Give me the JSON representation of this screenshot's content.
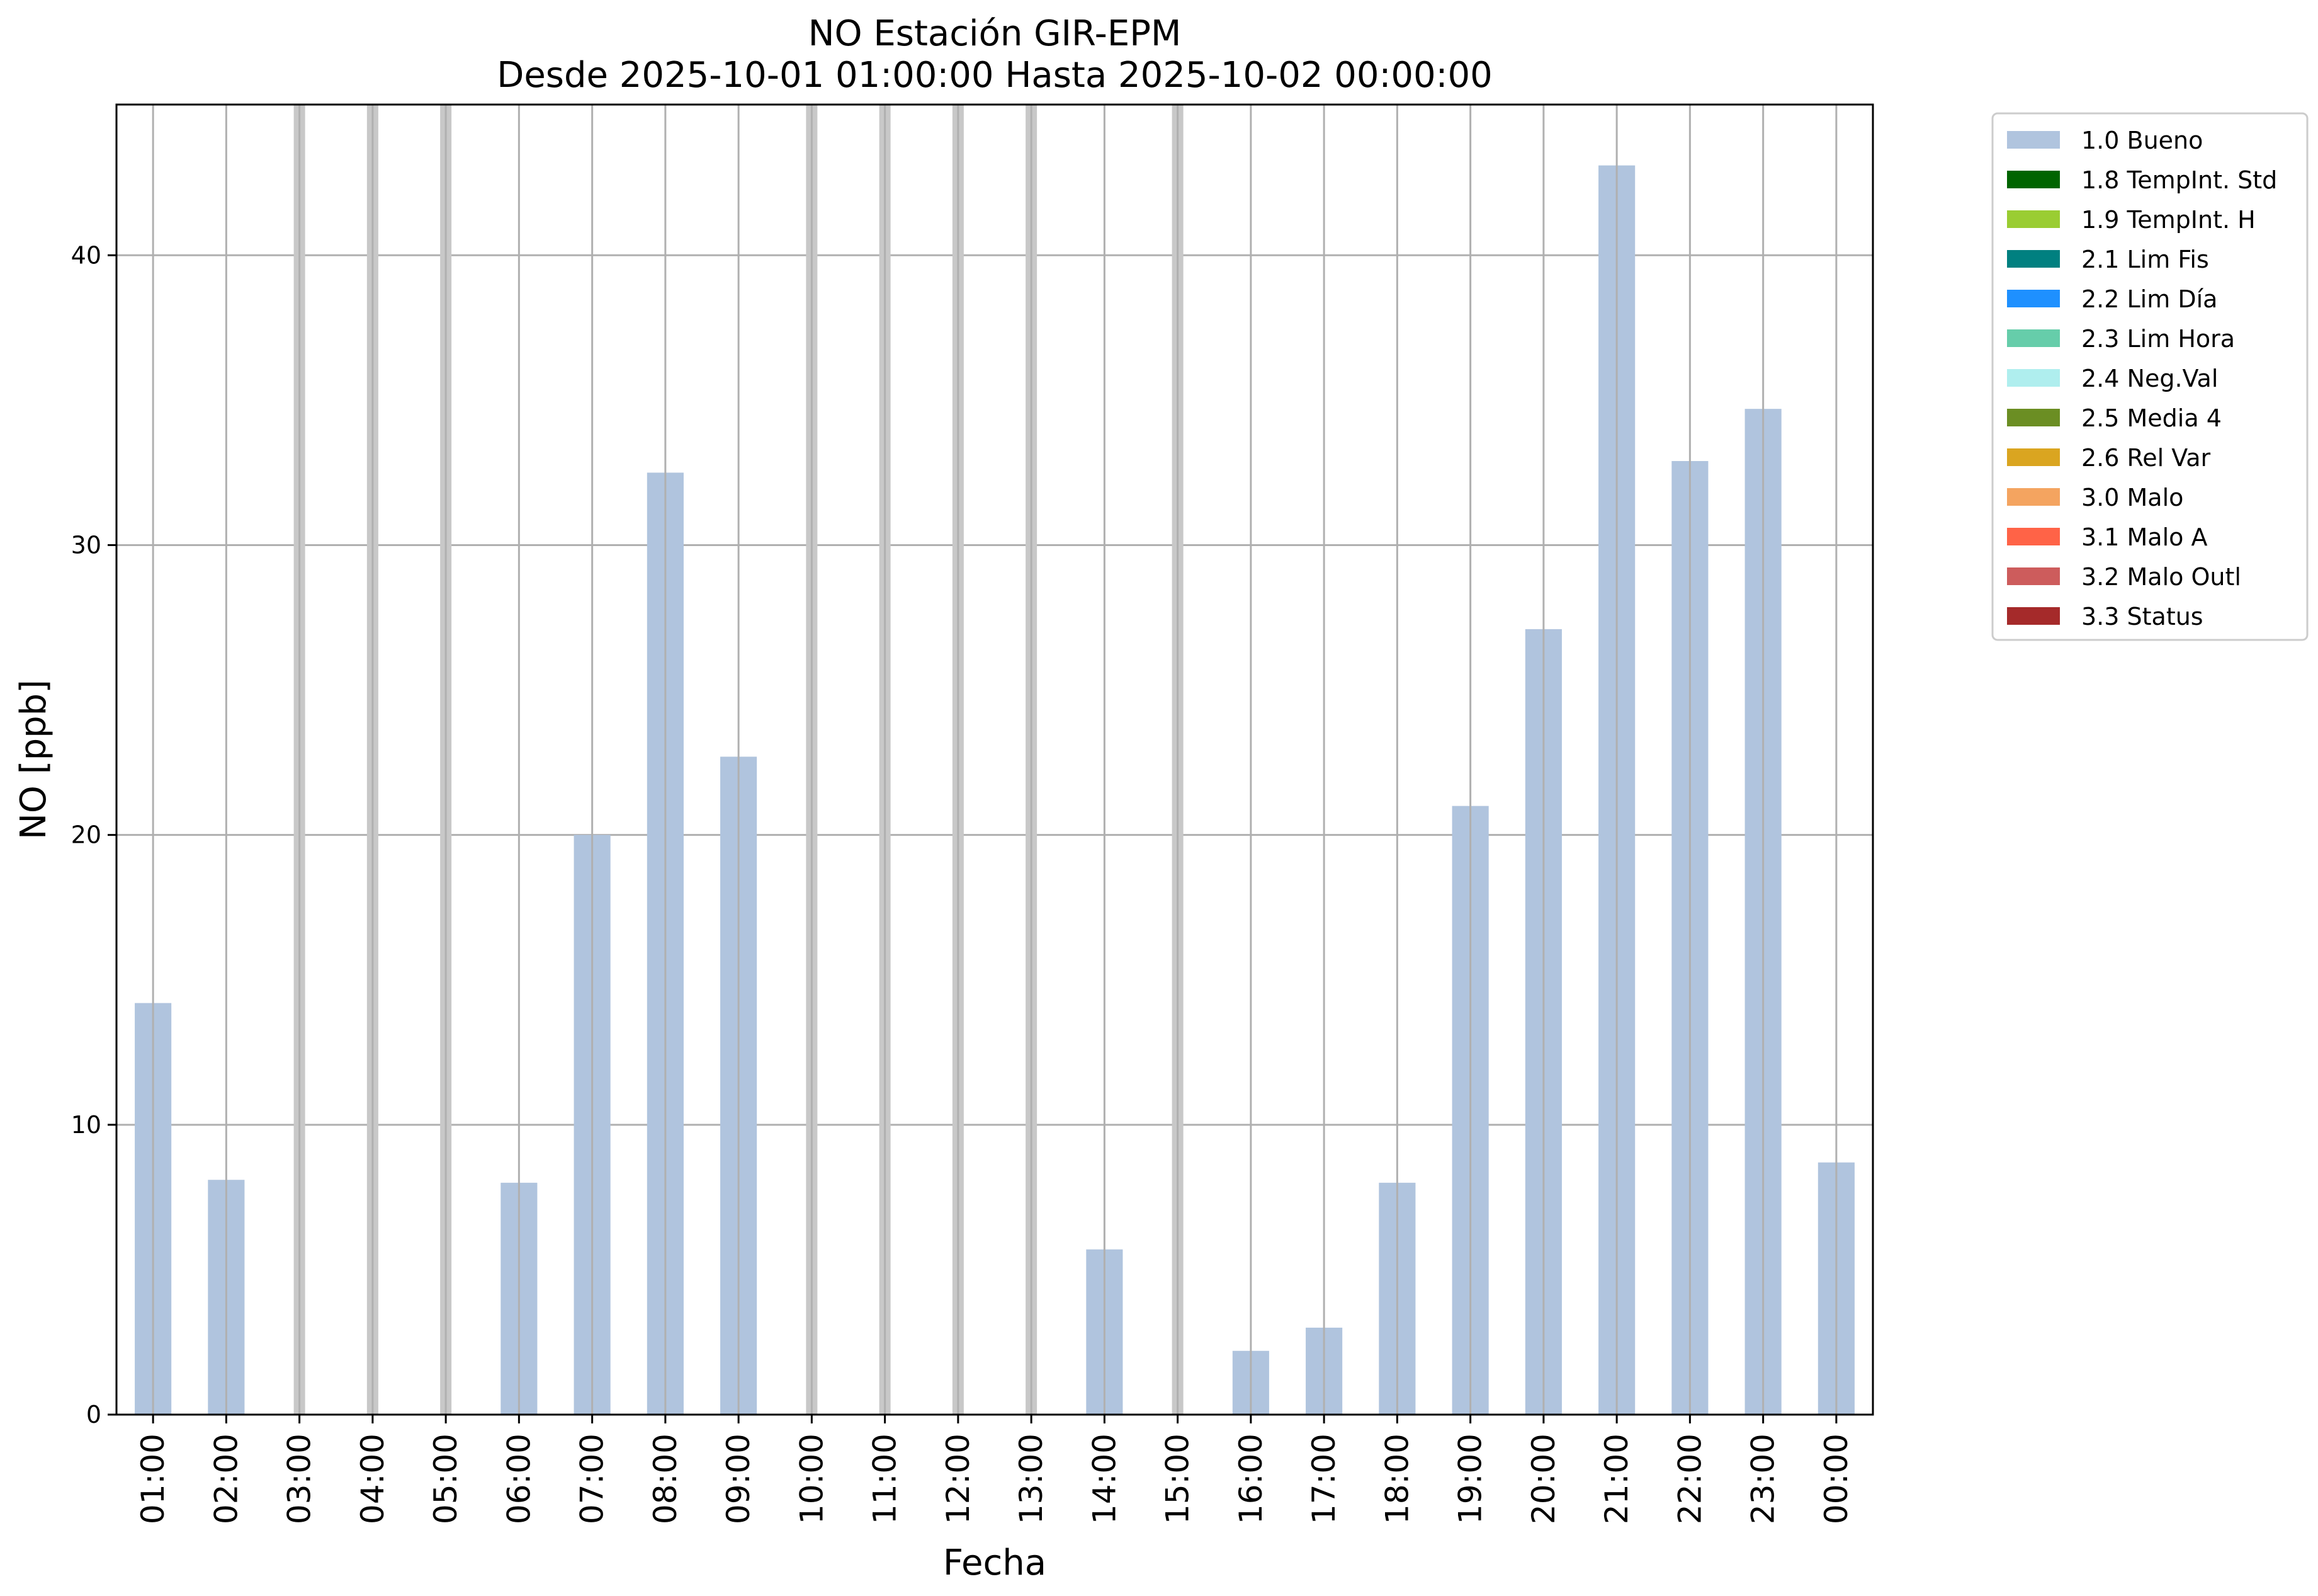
{
  "chart_data": {
    "type": "bar",
    "title": "NO Estación GIR-EPM",
    "subtitle": "Desde 2025-10-01 01:00:00 Hasta 2025-10-02 00:00:00",
    "xlabel": "Fecha",
    "ylabel": "NO [ppb]",
    "ylim": [
      0,
      45.2
    ],
    "yticks": [
      0,
      10,
      20,
      30,
      40
    ],
    "grid": true,
    "legend_position": "outside top-right",
    "categories": [
      "01:00",
      "02:00",
      "03:00",
      "04:00",
      "05:00",
      "06:00",
      "07:00",
      "08:00",
      "09:00",
      "10:00",
      "11:00",
      "12:00",
      "13:00",
      "14:00",
      "15:00",
      "16:00",
      "17:00",
      "18:00",
      "19:00",
      "20:00",
      "21:00",
      "22:00",
      "23:00",
      "00:00"
    ],
    "series": [
      {
        "name": "1.0 Bueno",
        "color": "#b0c4de",
        "values": [
          14.2,
          8.1,
          null,
          null,
          null,
          8.0,
          20.0,
          32.5,
          22.7,
          null,
          null,
          null,
          null,
          5.7,
          null,
          2.2,
          3.0,
          8.0,
          21.0,
          27.1,
          43.1,
          32.9,
          34.7,
          8.7
        ]
      }
    ],
    "missing_marker_color": "#c8c8c8",
    "legend": [
      {
        "label": "1.0 Bueno",
        "color": "#b0c4de"
      },
      {
        "label": "1.8 TempInt. Std",
        "color": "#006400"
      },
      {
        "label": "1.9 TempInt. H",
        "color": "#9acd32"
      },
      {
        "label": "2.1 Lim Fis",
        "color": "#008080"
      },
      {
        "label": "2.2 Lim Día",
        "color": "#1e90ff"
      },
      {
        "label": "2.3 Lim Hora",
        "color": "#66cdaa"
      },
      {
        "label": "2.4 Neg.Val",
        "color": "#afeeee"
      },
      {
        "label": "2.5 Media 4",
        "color": "#6b8e23"
      },
      {
        "label": "2.6 Rel Var",
        "color": "#daa520"
      },
      {
        "label": "3.0 Malo",
        "color": "#f4a460"
      },
      {
        "label": "3.1 Malo A",
        "color": "#ff6347"
      },
      {
        "label": "3.2 Malo Outl",
        "color": "#cd5c5c"
      },
      {
        "label": "3.3 Status",
        "color": "#a52a2a"
      }
    ]
  }
}
